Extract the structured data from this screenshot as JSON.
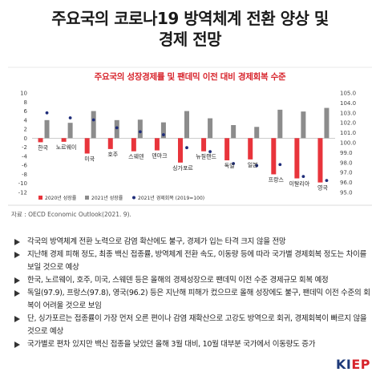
{
  "title_line1": "주요국의 코로나19 방역체계 전환 양상 및",
  "title_line2": "경제 전망",
  "chart_data": {
    "type": "bar",
    "title": "주요국의 성장경제률 및 팬데믹 이전 대비 경제회복 수준",
    "categories": [
      "한국",
      "노르웨이",
      "미국",
      "호주",
      "스웨덴",
      "덴마크",
      "싱가포르",
      "뉴질랜드",
      "독일",
      "일본",
      "프랑스",
      "이탈리아",
      "영국"
    ],
    "series": [
      {
        "name": "2020년 성장률",
        "axis": "left",
        "color": "#e8343b",
        "values": [
          -0.9,
          -0.8,
          -3.4,
          -2.4,
          -2.9,
          -2.7,
          -5.4,
          -2.9,
          -4.9,
          -4.7,
          -8.0,
          -8.9,
          -9.8
        ]
      },
      {
        "name": "2021년 성장률",
        "axis": "left",
        "color": "#8c8c8c",
        "values": [
          4.0,
          3.4,
          6.0,
          4.0,
          4.1,
          3.5,
          6.0,
          4.4,
          2.9,
          2.5,
          6.3,
          5.9,
          6.7
        ]
      },
      {
        "name": "2021년 경제회복 (2019=100)",
        "axis": "right",
        "color": "#1f2d7a",
        "values": [
          103.0,
          102.5,
          102.3,
          101.5,
          101.1,
          100.8,
          99.5,
          99.1,
          97.9,
          97.7,
          97.8,
          96.6,
          96.2
        ]
      }
    ],
    "ylim_left": [
      -12,
      10
    ],
    "yticks_left": [
      10,
      8,
      6,
      4,
      2,
      0,
      -2,
      -4,
      -6,
      -8,
      -10,
      -12
    ],
    "ylim_right": [
      95,
      105
    ],
    "yticks_right": [
      "105.0",
      "104.0",
      "103.0",
      "102.0",
      "101.0",
      "100.0",
      "99.0",
      "98.0",
      "97.0",
      "96.0",
      "95.0"
    ],
    "legend_position": "bottom-left"
  },
  "source": "자료 : OECD Economic Outlook(2021. 9).",
  "bullets": [
    "각국의 방역체계 전환 노력으로 감염 확산에도 불구, 경제가 입는 타격 크지 않을 전망",
    "지난해 경제 피해 정도, 최종 백신 접종률, 방역체계 전환 속도, 이동량 등에 따라 국가별 경제회복 정도는 차이를 보일 것으로 예상",
    "한국, 노르웨이, 호주, 미국, 스웨덴 등은 올해의 경제성장으로 팬데믹 이전 수준 경제규모 회복 예정",
    "독일(97.9), 프랑스(97.8), 영국(96.2) 등은 지난해 피해가 컸으므로 올해 성장에도 불구, 팬데믹 이전 수준의 회복이 어려울 것으로 보임",
    "단, 싱가포르는 접종률이 가장 먼저 오른 편이나 감염 재확산으로 고강도 방역으로 회귀, 경제회복이 빠르지 않을 것으로 예상",
    "국가별로 편차 있지만 백신 접종을 낮았던 올해 3월 대비, 10월 대부분 국가에서 이동량도 증가"
  ],
  "logo_text_a": "KI",
  "logo_text_b": "EP"
}
